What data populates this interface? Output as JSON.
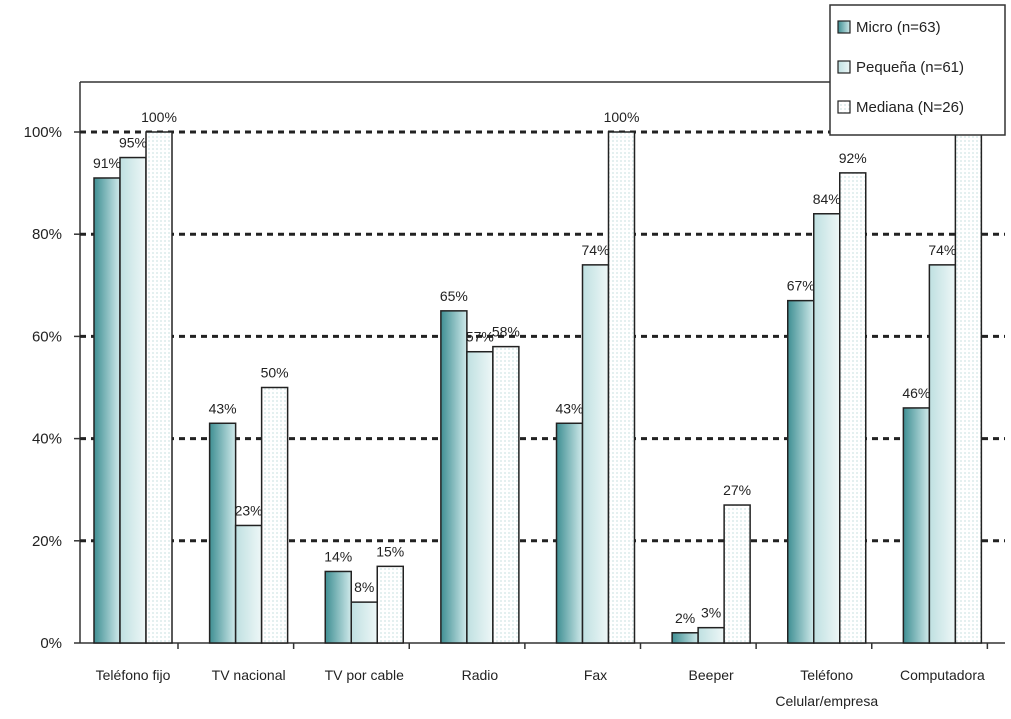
{
  "chart_data": {
    "type": "bar",
    "title": "",
    "xlabel": "",
    "ylabel": "",
    "ylim": [
      0,
      100
    ],
    "yticks": [
      0,
      20,
      40,
      60,
      80,
      100
    ],
    "ytick_labels": [
      "0%",
      "20%",
      "40%",
      "60%",
      "80%",
      "100%"
    ],
    "grid": "horizontal-dotted",
    "legend_position": "top-right",
    "categories": [
      [
        "Teléfono fijo"
      ],
      [
        "TV nacional"
      ],
      [
        "TV por cable"
      ],
      [
        "Radio"
      ],
      [
        "Fax"
      ],
      [
        "Beeper"
      ],
      [
        "Teléfono",
        "Celular/empresa"
      ],
      [
        "Computadora"
      ]
    ],
    "series": [
      {
        "name": "Micro (n=63)",
        "values": [
          91,
          43,
          14,
          65,
          43,
          2,
          67,
          46
        ],
        "labels": [
          "91%",
          "43%",
          "14%",
          "65%",
          "43%",
          "2%",
          "67%",
          "46%"
        ]
      },
      {
        "name": "Pequeña (n=61)",
        "values": [
          95,
          23,
          8,
          57,
          74,
          3,
          84,
          74
        ],
        "labels": [
          "95%",
          "23%",
          "8%",
          "57%",
          "74%",
          "3%",
          "84%",
          "74%"
        ]
      },
      {
        "name": "Mediana (N=26)",
        "values": [
          100,
          50,
          15,
          58,
          100,
          27,
          92,
          100
        ],
        "labels": [
          "100%",
          "50%",
          "15%",
          "58%",
          "100%",
          "27%",
          "92%",
          "100%"
        ]
      }
    ]
  }
}
